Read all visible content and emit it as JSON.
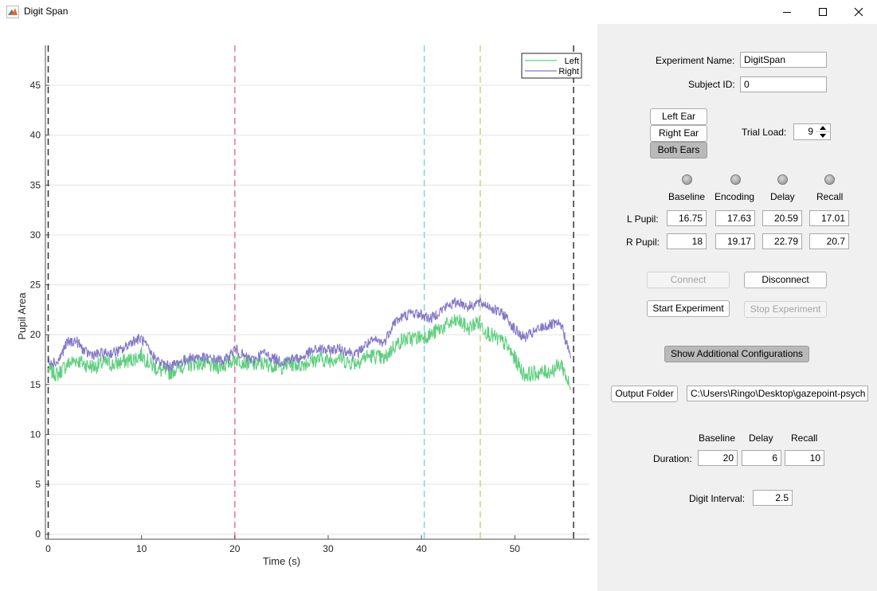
{
  "window": {
    "title": "Digit Span"
  },
  "config": {
    "experiment_name_label": "Experiment Name:",
    "experiment_name": "DigitSpan",
    "subject_id_label": "Subject ID:",
    "subject_id": "0"
  },
  "ears": {
    "left": "Left Ear",
    "right": "Right Ear",
    "both": "Both Ears",
    "selected": "Both Ears"
  },
  "trial_load": {
    "label": "Trial Load:",
    "value": "9"
  },
  "phases": [
    "Baseline",
    "Encoding",
    "Delay",
    "Recall"
  ],
  "pupil": {
    "left_label": "L Pupil:",
    "right_label": "R Pupil:",
    "left_values": [
      "16.75",
      "17.63",
      "20.59",
      "17.01"
    ],
    "right_values": [
      "18",
      "19.17",
      "22.79",
      "20.7"
    ]
  },
  "buttons": {
    "connect": "Connect",
    "disconnect": "Disconnect",
    "start": "Start Experiment",
    "stop": "Stop Experiment",
    "show_more": "Show Additional Configurations",
    "output_folder": "Output Folder"
  },
  "output_path": "C:\\Users\\Ringo\\Desktop\\gazepoint-psych",
  "duration": {
    "label": "Duration:",
    "headers": [
      "Baseline",
      "Delay",
      "Recall"
    ],
    "values": [
      "20",
      "6",
      "10"
    ]
  },
  "digit_interval": {
    "label": "Digit Interval:",
    "value": "2.5"
  },
  "colors": {
    "left_series": "#5fcf7f",
    "right_series": "#8478c8",
    "marker_baseline_end": "#e0799a",
    "marker_encoding_end": "#7fd6de",
    "marker_delay_end": "#c6d47e",
    "marker_bounds": "#333333"
  },
  "chart_data": {
    "type": "line",
    "xlabel": "Time (s)",
    "ylabel": "Pupil Area",
    "xlim": [
      -0.3,
      58
    ],
    "ylim": [
      -0.5,
      49
    ],
    "xticks": [
      0,
      10,
      20,
      30,
      40,
      50
    ],
    "yticks": [
      0,
      5,
      10,
      15,
      20,
      25,
      30,
      35,
      40,
      45
    ],
    "grid": "horizontal",
    "legend_position": "top-right",
    "markers": [
      {
        "x": 0,
        "role": "start"
      },
      {
        "x": 20,
        "role": "baseline end"
      },
      {
        "x": 40.3,
        "role": "encoding end"
      },
      {
        "x": 46.3,
        "role": "delay end"
      },
      {
        "x": 56.3,
        "role": "end"
      }
    ],
    "series": [
      {
        "name": "Left",
        "x": [
          0,
          1,
          2,
          3,
          4,
          5,
          6,
          7,
          8,
          9,
          10,
          11,
          12,
          13,
          14,
          15,
          16,
          17,
          18,
          19,
          20,
          21,
          22,
          23,
          24,
          25,
          26,
          27,
          28,
          29,
          30,
          31,
          32,
          33,
          34,
          35,
          36,
          37,
          38,
          39,
          40,
          41,
          42,
          43,
          44,
          45,
          46,
          47,
          48,
          49,
          50,
          51,
          52,
          53,
          54,
          55,
          56
        ],
        "values": [
          16.5,
          16,
          17,
          17.5,
          17,
          16.8,
          17.2,
          17,
          17.3,
          17.5,
          18,
          17,
          16.4,
          16.2,
          16.8,
          17,
          17.2,
          17,
          16.8,
          17,
          17.6,
          17.3,
          17,
          17.1,
          17,
          16.8,
          17.1,
          17,
          17.3,
          17.6,
          17.4,
          17.8,
          17.3,
          17.2,
          17.8,
          17.9,
          17.5,
          18.8,
          19.5,
          19.6,
          19.8,
          20,
          20.6,
          21.1,
          21.4,
          20.6,
          21.3,
          20.3,
          19.6,
          19.1,
          17.6,
          16,
          16.1,
          16.2,
          16.4,
          17.1,
          14.5
        ]
      },
      {
        "name": "Right",
        "x": [
          0,
          1,
          2,
          3,
          4,
          5,
          6,
          7,
          8,
          9,
          10,
          11,
          12,
          13,
          14,
          15,
          16,
          17,
          18,
          19,
          20,
          21,
          22,
          23,
          24,
          25,
          26,
          27,
          28,
          29,
          30,
          31,
          32,
          33,
          34,
          35,
          36,
          37,
          38,
          39,
          40,
          41,
          42,
          43,
          44,
          45,
          46,
          47,
          48,
          49,
          50,
          51,
          52,
          53,
          54,
          55,
          56
        ],
        "values": [
          17.5,
          17.2,
          19.2,
          19.4,
          18.2,
          18,
          18.1,
          18.2,
          18.5,
          19.4,
          19.6,
          18.1,
          17.2,
          16.8,
          17.2,
          17.6,
          17.8,
          17.6,
          17.5,
          17.4,
          18.6,
          17.8,
          17.4,
          18.2,
          17.7,
          17.3,
          17.6,
          17.6,
          18.2,
          18.6,
          18.4,
          18.6,
          18.4,
          18,
          19,
          19.4,
          19.2,
          21.2,
          21.8,
          22.2,
          22,
          21.6,
          22.4,
          23,
          23.3,
          22.8,
          23.2,
          23,
          22.4,
          21.9,
          20.5,
          19.7,
          20.2,
          20.8,
          21,
          21,
          17.6
        ]
      }
    ]
  }
}
